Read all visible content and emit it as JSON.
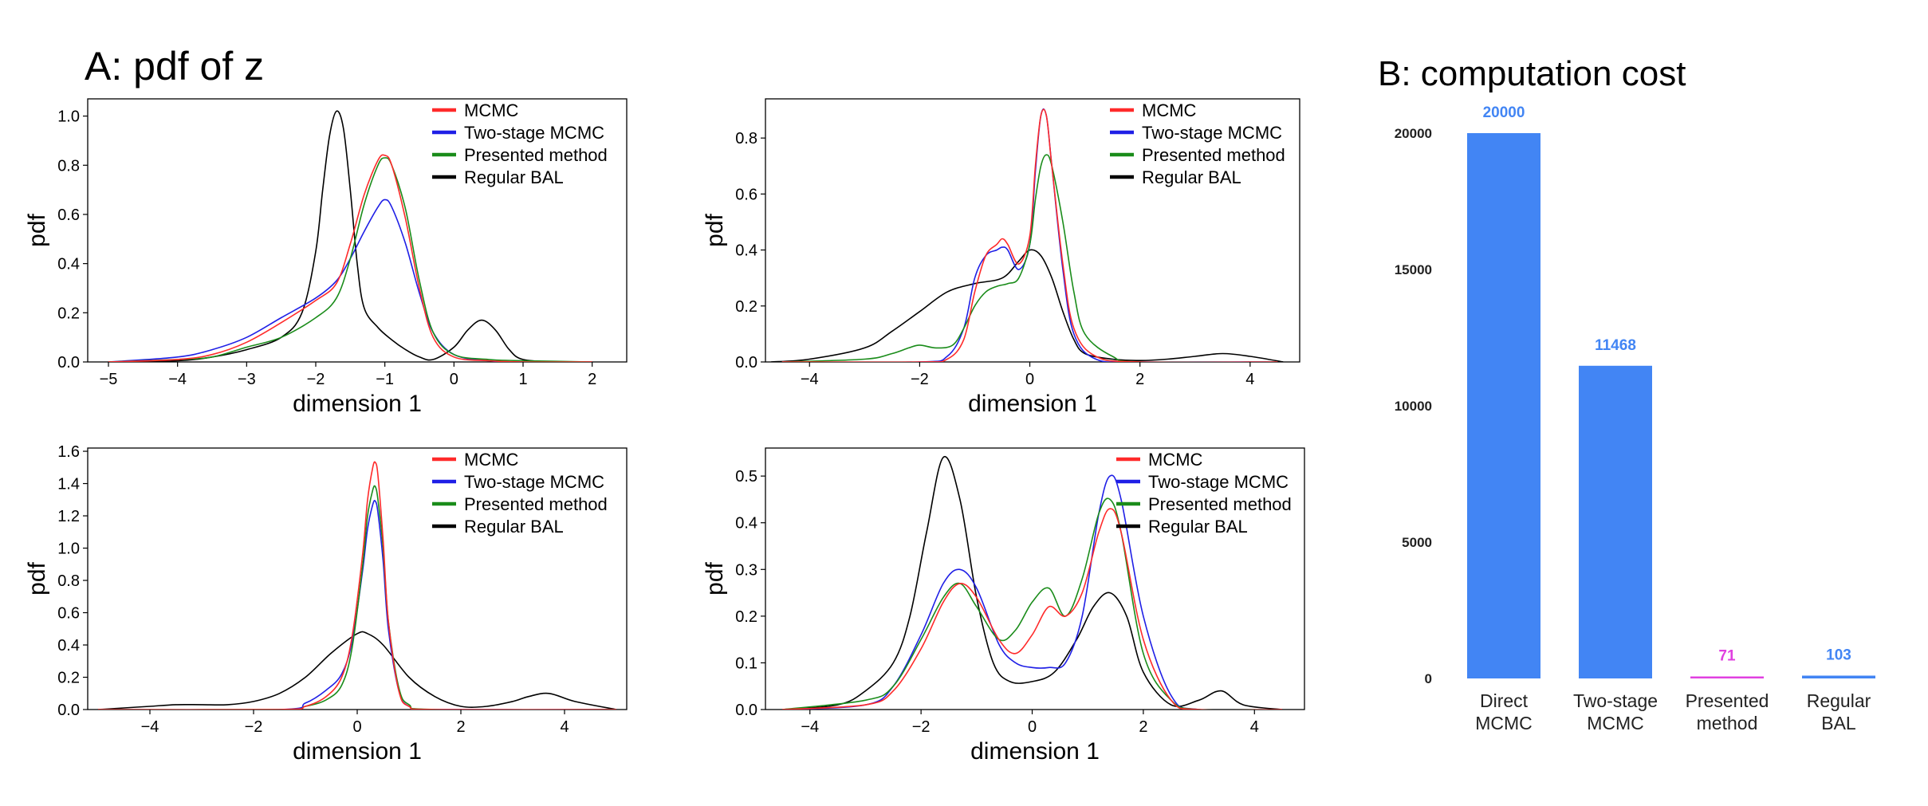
{
  "figure": {
    "panel_a_title": "A: pdf of z",
    "panel_b_title": "B: computation cost"
  },
  "colors": {
    "mcmc": "#ff2a2a",
    "two_stage": "#1f1fe6",
    "presented": "#1a8c1a",
    "regular": "#000000",
    "bar_blue": "#4285f4",
    "bar_magenta": "#e040e0"
  },
  "chart_data": [
    {
      "type": "line",
      "panel": "A1",
      "xlabel": "dimension 1",
      "ylabel": "pdf",
      "xlim": [
        -5.3,
        2.5
      ],
      "ylim": [
        0,
        1.07
      ],
      "xticks": [
        -5,
        -4,
        -3,
        -2,
        -1,
        0,
        1,
        2
      ],
      "yticks": [
        0.0,
        0.2,
        0.4,
        0.6,
        0.8,
        1.0
      ],
      "legend": [
        "MCMC",
        "Two-stage MCMC",
        "Presented method",
        "Regular BAL"
      ],
      "legend_position": "top-right",
      "series": [
        {
          "name": "MCMC",
          "key": "mcmc",
          "x": [
            -5,
            -4,
            -3.5,
            -3,
            -2.5,
            -2,
            -1.7,
            -1.5,
            -1.3,
            -1.1,
            -1.0,
            -0.9,
            -0.7,
            -0.5,
            -0.3,
            0,
            0.5,
            1,
            2
          ],
          "y": [
            0,
            0.01,
            0.03,
            0.08,
            0.16,
            0.25,
            0.32,
            0.48,
            0.68,
            0.82,
            0.84,
            0.8,
            0.58,
            0.3,
            0.1,
            0.02,
            0.005,
            0,
            0
          ]
        },
        {
          "name": "Two-stage MCMC",
          "key": "two_stage",
          "x": [
            -5,
            -4,
            -3.5,
            -3,
            -2.5,
            -2,
            -1.7,
            -1.5,
            -1.3,
            -1.1,
            -1.0,
            -0.9,
            -0.7,
            -0.5,
            -0.3,
            0,
            0.5,
            1,
            2
          ],
          "y": [
            0,
            0.02,
            0.05,
            0.1,
            0.18,
            0.26,
            0.33,
            0.42,
            0.53,
            0.63,
            0.66,
            0.63,
            0.48,
            0.28,
            0.12,
            0.03,
            0.005,
            0,
            0
          ]
        },
        {
          "name": "Presented method",
          "key": "presented",
          "x": [
            -5,
            -4,
            -3.5,
            -3,
            -2.5,
            -2,
            -1.7,
            -1.5,
            -1.3,
            -1.1,
            -1.0,
            -0.9,
            -0.7,
            -0.5,
            -0.3,
            0,
            0.5,
            1,
            2
          ],
          "y": [
            0,
            0.01,
            0.02,
            0.06,
            0.1,
            0.18,
            0.26,
            0.42,
            0.64,
            0.8,
            0.83,
            0.8,
            0.62,
            0.33,
            0.12,
            0.03,
            0.01,
            0.005,
            0
          ]
        },
        {
          "name": "Regular BAL",
          "key": "regular",
          "x": [
            -5,
            -4,
            -3.5,
            -3,
            -2.5,
            -2.2,
            -2,
            -1.9,
            -1.8,
            -1.7,
            -1.6,
            -1.5,
            -1.4,
            -1.3,
            -1.1,
            -0.9,
            -0.7,
            -0.5,
            -0.3,
            0,
            0.2,
            0.4,
            0.6,
            0.8,
            1.0,
            1.5,
            2
          ],
          "y": [
            0,
            0.005,
            0.02,
            0.05,
            0.1,
            0.2,
            0.45,
            0.7,
            0.92,
            1.02,
            0.95,
            0.7,
            0.4,
            0.22,
            0.14,
            0.09,
            0.05,
            0.02,
            0.01,
            0.06,
            0.13,
            0.17,
            0.13,
            0.05,
            0.01,
            0,
            0
          ]
        }
      ]
    },
    {
      "type": "line",
      "panel": "A2",
      "xlabel": "dimension 1",
      "ylabel": "pdf",
      "xlim": [
        -4.8,
        4.9
      ],
      "ylim": [
        0,
        0.94
      ],
      "xticks": [
        -4,
        -2,
        0,
        2,
        4
      ],
      "yticks": [
        0.0,
        0.2,
        0.4,
        0.6,
        0.8
      ],
      "legend": [
        "MCMC",
        "Two-stage MCMC",
        "Presented method",
        "Regular BAL"
      ],
      "legend_position": "top-right",
      "series": [
        {
          "name": "MCMC",
          "key": "mcmc",
          "x": [
            -4.5,
            -2,
            -1.5,
            -1.2,
            -1,
            -0.8,
            -0.6,
            -0.5,
            -0.4,
            -0.2,
            0,
            0.1,
            0.2,
            0.3,
            0.4,
            0.6,
            0.8,
            1.2,
            2,
            4.5
          ],
          "y": [
            0,
            0,
            0.01,
            0.08,
            0.25,
            0.38,
            0.42,
            0.44,
            0.42,
            0.35,
            0.45,
            0.7,
            0.88,
            0.88,
            0.7,
            0.35,
            0.12,
            0.02,
            0,
            0
          ]
        },
        {
          "name": "Two-stage MCMC",
          "key": "two_stage",
          "x": [
            -4.5,
            -2,
            -1.5,
            -1.2,
            -1,
            -0.8,
            -0.6,
            -0.5,
            -0.4,
            -0.2,
            0,
            0.1,
            0.2,
            0.3,
            0.4,
            0.6,
            0.8,
            1.2,
            2,
            4.5
          ],
          "y": [
            0,
            0,
            0.02,
            0.12,
            0.3,
            0.38,
            0.4,
            0.41,
            0.4,
            0.33,
            0.42,
            0.68,
            0.88,
            0.88,
            0.7,
            0.33,
            0.1,
            0.01,
            0,
            0
          ]
        },
        {
          "name": "Presented method",
          "key": "presented",
          "x": [
            -4.5,
            -3,
            -2.5,
            -2.2,
            -2,
            -1.7,
            -1.4,
            -1.2,
            -1,
            -0.8,
            -0.6,
            -0.4,
            -0.2,
            0,
            0.1,
            0.2,
            0.3,
            0.4,
            0.6,
            0.8,
            1,
            1.5,
            2,
            4.5
          ],
          "y": [
            0,
            0.01,
            0.03,
            0.05,
            0.06,
            0.05,
            0.06,
            0.12,
            0.2,
            0.25,
            0.27,
            0.28,
            0.3,
            0.42,
            0.58,
            0.7,
            0.74,
            0.7,
            0.5,
            0.25,
            0.1,
            0.02,
            0,
            0
          ]
        },
        {
          "name": "Regular BAL",
          "key": "regular",
          "x": [
            -4.7,
            -4,
            -3,
            -2.5,
            -2,
            -1.5,
            -1,
            -0.5,
            -0.2,
            0,
            0.2,
            0.4,
            0.6,
            0.8,
            1,
            1.5,
            2,
            2.5,
            3,
            3.5,
            4,
            4.6
          ],
          "y": [
            0,
            0.01,
            0.05,
            0.11,
            0.18,
            0.25,
            0.28,
            0.3,
            0.36,
            0.4,
            0.38,
            0.3,
            0.18,
            0.08,
            0.03,
            0.01,
            0.005,
            0.01,
            0.02,
            0.03,
            0.02,
            0
          ]
        }
      ]
    },
    {
      "type": "line",
      "panel": "A3",
      "xlabel": "dimension 1",
      "ylabel": "pdf",
      "xlim": [
        -5.2,
        5.2
      ],
      "ylim": [
        0,
        1.62
      ],
      "xticks": [
        -4,
        -2,
        0,
        2,
        4
      ],
      "yticks": [
        0.0,
        0.2,
        0.4,
        0.6,
        0.8,
        1.0,
        1.2,
        1.4,
        1.6
      ],
      "legend": [
        "MCMC",
        "Two-stage MCMC",
        "Presented method",
        "Regular BAL"
      ],
      "legend_position": "top-right",
      "series": [
        {
          "name": "MCMC",
          "key": "mcmc",
          "x": [
            -5,
            -1.5,
            -1,
            -0.6,
            -0.3,
            -0.1,
            0.1,
            0.2,
            0.3,
            0.35,
            0.4,
            0.5,
            0.6,
            0.8,
            1,
            1.5,
            5
          ],
          "y": [
            0,
            0,
            0.02,
            0.08,
            0.2,
            0.45,
            0.95,
            1.3,
            1.5,
            1.53,
            1.45,
            1.05,
            0.55,
            0.12,
            0.02,
            0,
            0
          ]
        },
        {
          "name": "Two-stage MCMC",
          "key": "two_stage",
          "x": [
            -5,
            -1.5,
            -1,
            -0.6,
            -0.3,
            -0.1,
            0.1,
            0.2,
            0.3,
            0.35,
            0.4,
            0.5,
            0.6,
            0.8,
            1,
            1.5,
            5
          ],
          "y": [
            0,
            0,
            0.04,
            0.12,
            0.22,
            0.42,
            0.85,
            1.12,
            1.27,
            1.29,
            1.22,
            0.92,
            0.5,
            0.12,
            0.02,
            0,
            0
          ]
        },
        {
          "name": "Presented method",
          "key": "presented",
          "x": [
            -5,
            -1.5,
            -1,
            -0.6,
            -0.3,
            -0.1,
            0.1,
            0.2,
            0.3,
            0.35,
            0.4,
            0.5,
            0.6,
            0.8,
            1,
            1.5,
            5
          ],
          "y": [
            0,
            0,
            0.02,
            0.06,
            0.15,
            0.38,
            0.88,
            1.2,
            1.36,
            1.38,
            1.3,
            1.0,
            0.55,
            0.14,
            0.03,
            0,
            0
          ]
        },
        {
          "name": "Regular BAL",
          "key": "regular",
          "x": [
            -5,
            -4.5,
            -4,
            -3.5,
            -3,
            -2.5,
            -2,
            -1.5,
            -1,
            -0.5,
            0,
            0.2,
            0.5,
            1,
            1.5,
            2,
            2.5,
            3,
            3.3,
            3.7,
            4.2,
            5
          ],
          "y": [
            0,
            0.01,
            0.02,
            0.03,
            0.03,
            0.03,
            0.05,
            0.1,
            0.2,
            0.35,
            0.47,
            0.47,
            0.4,
            0.2,
            0.08,
            0.02,
            0.02,
            0.05,
            0.08,
            0.1,
            0.05,
            0
          ]
        }
      ]
    },
    {
      "type": "line",
      "panel": "A4",
      "xlabel": "dimension 1",
      "ylabel": "pdf",
      "xlim": [
        -4.8,
        4.9
      ],
      "ylim": [
        0,
        0.56
      ],
      "xticks": [
        -4,
        -2,
        0,
        2,
        4
      ],
      "yticks": [
        0.0,
        0.1,
        0.2,
        0.3,
        0.4,
        0.5
      ],
      "legend": [
        "MCMC",
        "Two-stage MCMC",
        "Presented method",
        "Regular BAL"
      ],
      "legend_position": "top-right",
      "series": [
        {
          "name": "MCMC",
          "key": "mcmc",
          "x": [
            -4.5,
            -3,
            -2.5,
            -2,
            -1.6,
            -1.3,
            -1,
            -0.6,
            -0.3,
            0,
            0.3,
            0.6,
            0.9,
            1.2,
            1.4,
            1.6,
            2,
            2.5,
            3,
            4.5
          ],
          "y": [
            0,
            0.01,
            0.04,
            0.13,
            0.23,
            0.27,
            0.24,
            0.15,
            0.12,
            0.16,
            0.22,
            0.2,
            0.25,
            0.38,
            0.43,
            0.38,
            0.15,
            0.02,
            0,
            0
          ]
        },
        {
          "name": "Two-stage MCMC",
          "key": "two_stage",
          "x": [
            -4.5,
            -3,
            -2.5,
            -2,
            -1.6,
            -1.3,
            -1,
            -0.6,
            -0.3,
            0,
            0.3,
            0.6,
            0.9,
            1.2,
            1.4,
            1.6,
            2,
            2.5,
            3,
            4.5
          ],
          "y": [
            0,
            0.01,
            0.05,
            0.16,
            0.27,
            0.3,
            0.26,
            0.14,
            0.1,
            0.09,
            0.09,
            0.1,
            0.2,
            0.42,
            0.5,
            0.45,
            0.2,
            0.03,
            0,
            0
          ]
        },
        {
          "name": "Presented method",
          "key": "presented",
          "x": [
            -4.5,
            -3,
            -2.5,
            -2,
            -1.6,
            -1.3,
            -1,
            -0.6,
            -0.3,
            0,
            0.3,
            0.6,
            0.9,
            1.2,
            1.4,
            1.6,
            2,
            2.5,
            3,
            4.5
          ],
          "y": [
            0,
            0.02,
            0.05,
            0.15,
            0.24,
            0.27,
            0.22,
            0.15,
            0.17,
            0.23,
            0.26,
            0.2,
            0.28,
            0.42,
            0.45,
            0.38,
            0.12,
            0.02,
            0,
            0
          ]
        },
        {
          "name": "Regular BAL",
          "key": "regular",
          "x": [
            -4.5,
            -3.5,
            -3,
            -2.5,
            -2.2,
            -1.9,
            -1.6,
            -1.3,
            -1,
            -0.7,
            -0.4,
            0,
            0.4,
            0.8,
            1.1,
            1.4,
            1.7,
            2,
            2.5,
            3,
            3.4,
            3.8,
            4.5
          ],
          "y": [
            0,
            0.01,
            0.04,
            0.1,
            0.2,
            0.38,
            0.54,
            0.45,
            0.24,
            0.1,
            0.06,
            0.06,
            0.08,
            0.15,
            0.22,
            0.25,
            0.2,
            0.08,
            0.01,
            0.02,
            0.04,
            0.01,
            0
          ]
        }
      ]
    },
    {
      "type": "bar",
      "panel": "B",
      "title": "B: computation cost",
      "categories": [
        "Direct\nMCMC",
        "Two-stage\nMCMC",
        "Presented\nmethod",
        "Regular\nBAL"
      ],
      "values": [
        20000,
        11468,
        71,
        103
      ],
      "value_labels": [
        "20000",
        "11468",
        "71",
        "103"
      ],
      "bar_colors": [
        "bar_blue",
        "bar_blue",
        "bar_magenta",
        "bar_blue"
      ],
      "ylim": [
        0,
        20000
      ],
      "yticks": [
        0,
        5000,
        10000,
        15000,
        20000
      ],
      "ytick_labels": [
        "0",
        "5000",
        "10000",
        "15000",
        "20000"
      ]
    }
  ]
}
